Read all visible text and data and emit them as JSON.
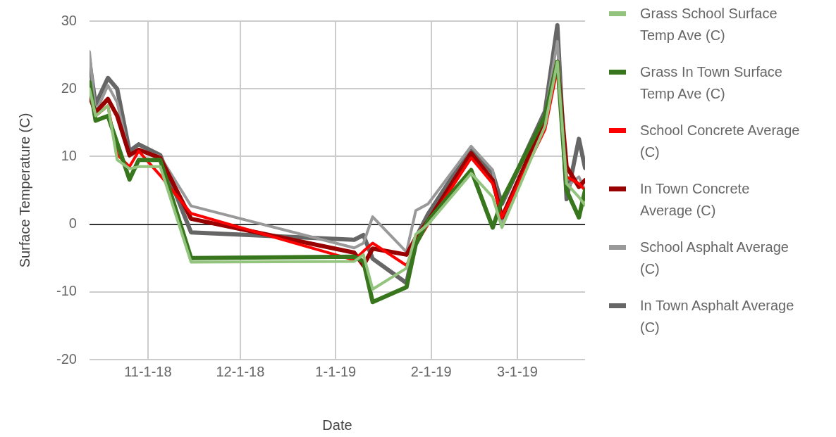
{
  "chart_data": {
    "type": "line",
    "xlabel": "Date",
    "ylabel": "Surface Temperature (C)",
    "x": [
      "2018-10-13",
      "2018-10-15",
      "2018-10-19",
      "2018-10-22",
      "2018-10-26",
      "2018-10-29",
      "2018-11-05",
      "2018-11-15",
      "2019-01-07",
      "2019-01-10",
      "2019-01-13",
      "2019-01-24",
      "2019-01-27",
      "2019-01-31",
      "2019-02-14",
      "2019-02-21",
      "2019-02-24",
      "2019-03-10",
      "2019-03-14",
      "2019-03-17",
      "2019-03-21",
      "2019-03-23"
    ],
    "xlim": [
      "2018-10-13",
      "2019-03-23"
    ],
    "xticks": [
      {
        "value": "2018-11-01",
        "label": "11-1-18"
      },
      {
        "value": "2018-12-01",
        "label": "12-1-18"
      },
      {
        "value": "2019-01-01",
        "label": "1-1-19"
      },
      {
        "value": "2019-02-01",
        "label": "2-1-19"
      },
      {
        "value": "2019-03-01",
        "label": "3-1-19"
      }
    ],
    "ylim": [
      -20,
      30
    ],
    "yticks": [
      -20,
      -10,
      0,
      10,
      20,
      30
    ],
    "grid": true,
    "legend": "right",
    "marker": "none",
    "line_style": "solid",
    "series": [
      {
        "name": "Grass School Surface Temp Ave (C)",
        "color": "#93c47d",
        "values": [
          20,
          16,
          17.5,
          9.5,
          8.2,
          8.5,
          8.5,
          -5.6,
          -5.5,
          -4.5,
          -9.6,
          -6.5,
          -1.5,
          0,
          7.5,
          4,
          -0.5,
          14.5,
          24,
          6,
          4,
          2.8
        ]
      },
      {
        "name": "Grass In Town Surface Temp Ave (C)",
        "color": "#38761d",
        "values": [
          21,
          15.3,
          16,
          12,
          6.6,
          9.5,
          9.5,
          -5,
          -4.8,
          -5.5,
          -11.5,
          -9.3,
          -3,
          0.5,
          8,
          -0.5,
          3.5,
          16,
          24,
          5,
          1,
          5
        ]
      },
      {
        "name": "School Concrete Average (C)",
        "color": "#ff0000",
        "values": [
          null,
          16,
          17.5,
          10.3,
          8.5,
          10.8,
          7.2,
          1.6,
          -5.3,
          -4,
          -2.8,
          -6.1,
          -3,
          0,
          9.8,
          6,
          1,
          14,
          23,
          7,
          6,
          5
        ]
      },
      {
        "name": "In Town Concrete Average (C)",
        "color": "#990000",
        "values": [
          19,
          16.5,
          18.5,
          16,
          10.2,
          11,
          9.8,
          0.8,
          -4.2,
          -6.1,
          -3.6,
          -4.5,
          -2,
          0.5,
          10.5,
          6.5,
          1,
          15.5,
          24,
          8.5,
          5.5,
          6.5
        ]
      },
      {
        "name": "School Asphalt Average (C)",
        "color": "#999999",
        "values": [
          25.5,
          16.5,
          20.5,
          18,
          10,
          11,
          10,
          2.7,
          -3.5,
          -2.8,
          1.1,
          -4.1,
          2,
          3,
          11.5,
          8,
          0,
          16,
          27,
          5.5,
          7,
          5
        ]
      },
      {
        "name": "In Town Asphalt Average (C)",
        "color": "#666666",
        "values": [
          24,
          17.7,
          21.6,
          20,
          10.8,
          11.8,
          10.2,
          -1.2,
          -2.3,
          -1.6,
          -5.1,
          -8.7,
          -2,
          1.5,
          11.3,
          7.5,
          3,
          16.7,
          29.4,
          3.7,
          12.6,
          8.3
        ]
      }
    ]
  }
}
